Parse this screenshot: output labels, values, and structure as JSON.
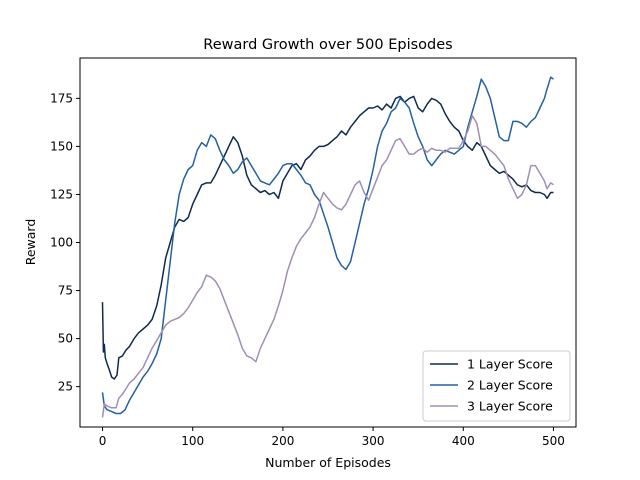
{
  "chart_data": {
    "type": "line",
    "title": "Reward Growth over 500 Episodes",
    "xlabel": "Number of Episodes",
    "ylabel": "Reward",
    "xlim": [
      -25,
      525
    ],
    "ylim": [
      4,
      196
    ],
    "xticks": [
      0,
      100,
      200,
      300,
      400,
      500
    ],
    "yticks": [
      25,
      50,
      75,
      100,
      125,
      150,
      175
    ],
    "grid": false,
    "legend_position": "lower-right",
    "series": [
      {
        "name": "1 Layer Score",
        "color": "#0f2a4f",
        "points": [
          [
            0,
            69
          ],
          [
            1,
            43
          ],
          [
            2,
            47
          ],
          [
            3,
            40
          ],
          [
            5,
            37
          ],
          [
            8,
            33
          ],
          [
            10,
            30
          ],
          [
            13,
            29
          ],
          [
            16,
            31
          ],
          [
            18,
            40
          ],
          [
            22,
            41
          ],
          [
            26,
            44
          ],
          [
            30,
            46
          ],
          [
            35,
            50
          ],
          [
            40,
            53
          ],
          [
            45,
            55
          ],
          [
            50,
            57
          ],
          [
            55,
            60
          ],
          [
            60,
            67
          ],
          [
            65,
            78
          ],
          [
            70,
            92
          ],
          [
            75,
            100
          ],
          [
            80,
            108
          ],
          [
            85,
            112
          ],
          [
            90,
            111
          ],
          [
            95,
            113
          ],
          [
            100,
            120
          ],
          [
            105,
            125
          ],
          [
            110,
            130
          ],
          [
            115,
            131
          ],
          [
            120,
            131
          ],
          [
            125,
            135
          ],
          [
            130,
            140
          ],
          [
            135,
            145
          ],
          [
            140,
            150
          ],
          [
            145,
            155
          ],
          [
            150,
            152
          ],
          [
            155,
            145
          ],
          [
            160,
            135
          ],
          [
            165,
            130
          ],
          [
            170,
            128
          ],
          [
            175,
            126
          ],
          [
            180,
            127
          ],
          [
            185,
            125
          ],
          [
            190,
            126
          ],
          [
            195,
            123
          ],
          [
            200,
            132
          ],
          [
            205,
            136
          ],
          [
            210,
            140
          ],
          [
            215,
            141
          ],
          [
            220,
            138
          ],
          [
            225,
            143
          ],
          [
            230,
            145
          ],
          [
            235,
            148
          ],
          [
            240,
            150
          ],
          [
            245,
            150
          ],
          [
            250,
            151
          ],
          [
            255,
            153
          ],
          [
            260,
            155
          ],
          [
            265,
            158
          ],
          [
            270,
            156
          ],
          [
            275,
            160
          ],
          [
            280,
            163
          ],
          [
            285,
            166
          ],
          [
            290,
            168
          ],
          [
            295,
            170
          ],
          [
            300,
            170
          ],
          [
            305,
            171
          ],
          [
            310,
            169
          ],
          [
            315,
            172
          ],
          [
            320,
            170
          ],
          [
            325,
            175
          ],
          [
            330,
            176
          ],
          [
            335,
            173
          ],
          [
            340,
            175
          ],
          [
            345,
            176
          ],
          [
            350,
            170
          ],
          [
            355,
            168
          ],
          [
            360,
            172
          ],
          [
            365,
            175
          ],
          [
            370,
            174
          ],
          [
            375,
            172
          ],
          [
            380,
            167
          ],
          [
            385,
            163
          ],
          [
            390,
            160
          ],
          [
            395,
            158
          ],
          [
            400,
            153
          ],
          [
            405,
            150
          ],
          [
            410,
            148
          ],
          [
            415,
            152
          ],
          [
            420,
            150
          ],
          [
            425,
            145
          ],
          [
            430,
            140
          ],
          [
            435,
            138
          ],
          [
            440,
            136
          ],
          [
            445,
            137
          ],
          [
            450,
            135
          ],
          [
            455,
            133
          ],
          [
            460,
            130
          ],
          [
            465,
            129
          ],
          [
            470,
            130
          ],
          [
            475,
            127
          ],
          [
            480,
            126
          ],
          [
            485,
            126
          ],
          [
            490,
            125
          ],
          [
            493,
            123
          ],
          [
            497,
            126
          ],
          [
            500,
            126
          ]
        ]
      },
      {
        "name": "2 Layer Score",
        "color": "#2461a0",
        "points": [
          [
            0,
            22
          ],
          [
            2,
            15
          ],
          [
            5,
            13
          ],
          [
            10,
            12
          ],
          [
            15,
            11
          ],
          [
            20,
            11
          ],
          [
            25,
            13
          ],
          [
            30,
            18
          ],
          [
            35,
            22
          ],
          [
            40,
            26
          ],
          [
            45,
            30
          ],
          [
            50,
            33
          ],
          [
            55,
            37
          ],
          [
            60,
            42
          ],
          [
            65,
            50
          ],
          [
            70,
            70
          ],
          [
            75,
            90
          ],
          [
            80,
            110
          ],
          [
            85,
            125
          ],
          [
            90,
            133
          ],
          [
            95,
            138
          ],
          [
            100,
            140
          ],
          [
            105,
            148
          ],
          [
            110,
            152
          ],
          [
            115,
            150
          ],
          [
            120,
            156
          ],
          [
            125,
            154
          ],
          [
            130,
            148
          ],
          [
            135,
            143
          ],
          [
            140,
            140
          ],
          [
            145,
            136
          ],
          [
            150,
            138
          ],
          [
            155,
            142
          ],
          [
            160,
            144
          ],
          [
            165,
            140
          ],
          [
            170,
            136
          ],
          [
            175,
            132
          ],
          [
            180,
            131
          ],
          [
            185,
            130
          ],
          [
            190,
            133
          ],
          [
            195,
            136
          ],
          [
            200,
            140
          ],
          [
            205,
            141
          ],
          [
            210,
            141
          ],
          [
            215,
            138
          ],
          [
            220,
            135
          ],
          [
            225,
            131
          ],
          [
            230,
            130
          ],
          [
            235,
            125
          ],
          [
            240,
            122
          ],
          [
            245,
            115
          ],
          [
            250,
            108
          ],
          [
            255,
            100
          ],
          [
            260,
            92
          ],
          [
            265,
            88
          ],
          [
            270,
            86
          ],
          [
            275,
            90
          ],
          [
            280,
            100
          ],
          [
            285,
            110
          ],
          [
            290,
            120
          ],
          [
            295,
            128
          ],
          [
            300,
            138
          ],
          [
            305,
            150
          ],
          [
            310,
            158
          ],
          [
            315,
            162
          ],
          [
            320,
            168
          ],
          [
            325,
            170
          ],
          [
            330,
            175
          ],
          [
            335,
            173
          ],
          [
            340,
            170
          ],
          [
            345,
            162
          ],
          [
            350,
            155
          ],
          [
            355,
            150
          ],
          [
            360,
            143
          ],
          [
            365,
            140
          ],
          [
            370,
            143
          ],
          [
            375,
            146
          ],
          [
            380,
            148
          ],
          [
            385,
            147
          ],
          [
            390,
            146
          ],
          [
            395,
            148
          ],
          [
            400,
            150
          ],
          [
            405,
            160
          ],
          [
            410,
            168
          ],
          [
            415,
            176
          ],
          [
            420,
            185
          ],
          [
            425,
            181
          ],
          [
            430,
            175
          ],
          [
            435,
            165
          ],
          [
            440,
            155
          ],
          [
            445,
            153
          ],
          [
            450,
            153
          ],
          [
            455,
            163
          ],
          [
            460,
            163
          ],
          [
            465,
            162
          ],
          [
            470,
            160
          ],
          [
            475,
            163
          ],
          [
            480,
            165
          ],
          [
            485,
            170
          ],
          [
            490,
            175
          ],
          [
            493,
            180
          ],
          [
            497,
            186
          ],
          [
            500,
            185
          ]
        ]
      },
      {
        "name": "3 Layer Score",
        "color": "#a08fb4",
        "points": [
          [
            0,
            9
          ],
          [
            2,
            16
          ],
          [
            5,
            15
          ],
          [
            10,
            14
          ],
          [
            15,
            14
          ],
          [
            18,
            19
          ],
          [
            22,
            21
          ],
          [
            26,
            24
          ],
          [
            30,
            27
          ],
          [
            35,
            29
          ],
          [
            40,
            32
          ],
          [
            45,
            35
          ],
          [
            50,
            40
          ],
          [
            55,
            45
          ],
          [
            60,
            49
          ],
          [
            65,
            53
          ],
          [
            70,
            57
          ],
          [
            75,
            59
          ],
          [
            80,
            60
          ],
          [
            85,
            61
          ],
          [
            90,
            63
          ],
          [
            95,
            66
          ],
          [
            100,
            70
          ],
          [
            105,
            74
          ],
          [
            110,
            77
          ],
          [
            115,
            83
          ],
          [
            120,
            82
          ],
          [
            125,
            80
          ],
          [
            130,
            76
          ],
          [
            135,
            70
          ],
          [
            140,
            64
          ],
          [
            145,
            58
          ],
          [
            150,
            52
          ],
          [
            155,
            45
          ],
          [
            160,
            41
          ],
          [
            165,
            40
          ],
          [
            170,
            38
          ],
          [
            175,
            45
          ],
          [
            180,
            50
          ],
          [
            185,
            55
          ],
          [
            190,
            60
          ],
          [
            195,
            67
          ],
          [
            200,
            75
          ],
          [
            205,
            85
          ],
          [
            210,
            92
          ],
          [
            215,
            98
          ],
          [
            220,
            102
          ],
          [
            225,
            105
          ],
          [
            230,
            108
          ],
          [
            235,
            113
          ],
          [
            240,
            120
          ],
          [
            245,
            126
          ],
          [
            250,
            123
          ],
          [
            255,
            120
          ],
          [
            260,
            118
          ],
          [
            265,
            117
          ],
          [
            270,
            120
          ],
          [
            275,
            125
          ],
          [
            280,
            130
          ],
          [
            285,
            132
          ],
          [
            290,
            126
          ],
          [
            295,
            122
          ],
          [
            300,
            128
          ],
          [
            305,
            134
          ],
          [
            310,
            140
          ],
          [
            315,
            143
          ],
          [
            320,
            148
          ],
          [
            325,
            153
          ],
          [
            330,
            154
          ],
          [
            335,
            150
          ],
          [
            340,
            146
          ],
          [
            345,
            146
          ],
          [
            350,
            148
          ],
          [
            355,
            149
          ],
          [
            360,
            147
          ],
          [
            365,
            149
          ],
          [
            370,
            148
          ],
          [
            375,
            148
          ],
          [
            380,
            147
          ],
          [
            385,
            149
          ],
          [
            390,
            149
          ],
          [
            395,
            149
          ],
          [
            400,
            153
          ],
          [
            405,
            158
          ],
          [
            410,
            166
          ],
          [
            415,
            162
          ],
          [
            420,
            150
          ],
          [
            425,
            150
          ],
          [
            430,
            148
          ],
          [
            435,
            146
          ],
          [
            440,
            143
          ],
          [
            445,
            140
          ],
          [
            450,
            133
          ],
          [
            455,
            128
          ],
          [
            460,
            123
          ],
          [
            465,
            125
          ],
          [
            470,
            130
          ],
          [
            475,
            140
          ],
          [
            480,
            140
          ],
          [
            485,
            136
          ],
          [
            490,
            132
          ],
          [
            493,
            128
          ],
          [
            497,
            131
          ],
          [
            500,
            130
          ]
        ]
      }
    ]
  }
}
